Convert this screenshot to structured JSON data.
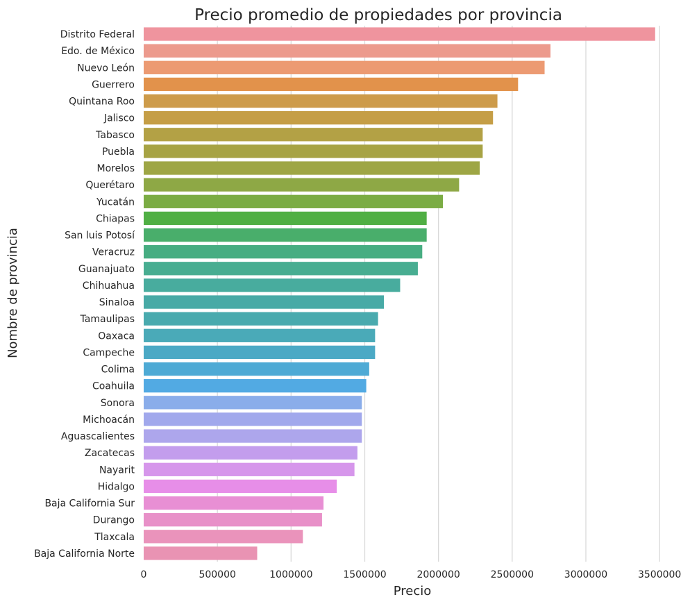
{
  "chart_data": {
    "type": "bar",
    "orientation": "horizontal",
    "title": "Precio promedio de propiedades por provincia",
    "xlabel": "Precio",
    "ylabel": "Nombre de provincia",
    "xlim": [
      0,
      3650000
    ],
    "xticks": [
      0,
      500000,
      1000000,
      1500000,
      2000000,
      2500000,
      3000000,
      3500000
    ],
    "xtick_labels": [
      "0",
      "500000",
      "1000000",
      "1500000",
      "2000000",
      "2500000",
      "3000000",
      "3500000"
    ],
    "grid": "vertical",
    "categories": [
      "Distrito Federal",
      "Edo. de México",
      "Nuevo León",
      "Guerrero",
      "Quintana Roo",
      "Jalisco",
      "Tabasco",
      "Puebla",
      "Morelos",
      "Querétaro",
      "Yucatán",
      "Chiapas",
      "San luis Potosí",
      "Veracruz",
      "Guanajuato",
      "Chihuahua",
      "Sinaloa",
      "Tamaulipas",
      "Oaxaca",
      "Campeche",
      "Colima",
      "Coahuila",
      "Sonora",
      "Michoacán",
      "Aguascalientes",
      "Zacatecas",
      "Nayarit",
      "Hidalgo",
      "Baja California Sur",
      "Durango",
      "Tlaxcala",
      "Baja California Norte"
    ],
    "values": [
      3470000,
      2760000,
      2720000,
      2540000,
      2400000,
      2370000,
      2300000,
      2300000,
      2280000,
      2140000,
      2030000,
      1920000,
      1920000,
      1890000,
      1860000,
      1740000,
      1630000,
      1590000,
      1570000,
      1570000,
      1530000,
      1510000,
      1480000,
      1480000,
      1480000,
      1450000,
      1430000,
      1310000,
      1220000,
      1210000,
      1080000,
      770000
    ],
    "colors": [
      "#ef949e",
      "#ec9a8d",
      "#ec9a72",
      "#e2924b",
      "#cd9b4a",
      "#c59e46",
      "#b3a145",
      "#a7a344",
      "#9ea645",
      "#8ea845",
      "#7bac44",
      "#50af44",
      "#49ae6b",
      "#47ad82",
      "#48ad91",
      "#48ac9e",
      "#48aaa6",
      "#49aaae",
      "#4aaab8",
      "#4ba9c5",
      "#4eaad5",
      "#52aae3",
      "#8aadea",
      "#a1a8ec",
      "#ada6ec",
      "#c39ded",
      "#d696eb",
      "#e78ee8",
      "#e88fd4",
      "#e890c8",
      "#ea93bb",
      "#e993b3"
    ]
  }
}
